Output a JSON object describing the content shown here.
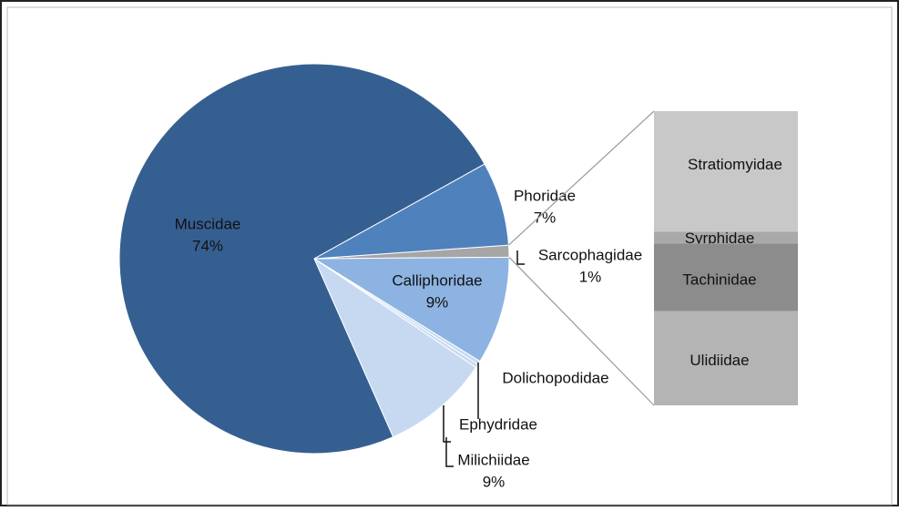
{
  "chart_data": {
    "type": "pie-of-bar",
    "categories": [
      "Sarcophagidae",
      "Calliphoridae",
      "Dolichopodidae",
      "Ephydridae",
      "Milichiidae",
      "Muscidae",
      "Phoridae"
    ],
    "values": [
      1,
      9,
      0.3,
      0.3,
      9,
      74,
      7
    ],
    "value_labels": [
      "1%",
      "9%",
      null,
      null,
      "9%",
      "74%",
      "7%"
    ],
    "colors": [
      "#a6a6a6",
      "#8db3e2",
      "#c6d9f1",
      "#c6d9f1",
      "#c6d9f1",
      "#365f91",
      "#4f81bd"
    ],
    "bar_source": "Sarcophagidae",
    "bar": {
      "categories": [
        "Stratiomyidae",
        "Syrphidae",
        "Tachinidae",
        "Ulidiidae"
      ],
      "values": [
        0.41,
        0.04,
        0.23,
        0.32
      ],
      "colors": [
        "#c8c8c8",
        "#a9a9a9",
        "#8c8c8c",
        "#b4b4b4"
      ]
    }
  }
}
